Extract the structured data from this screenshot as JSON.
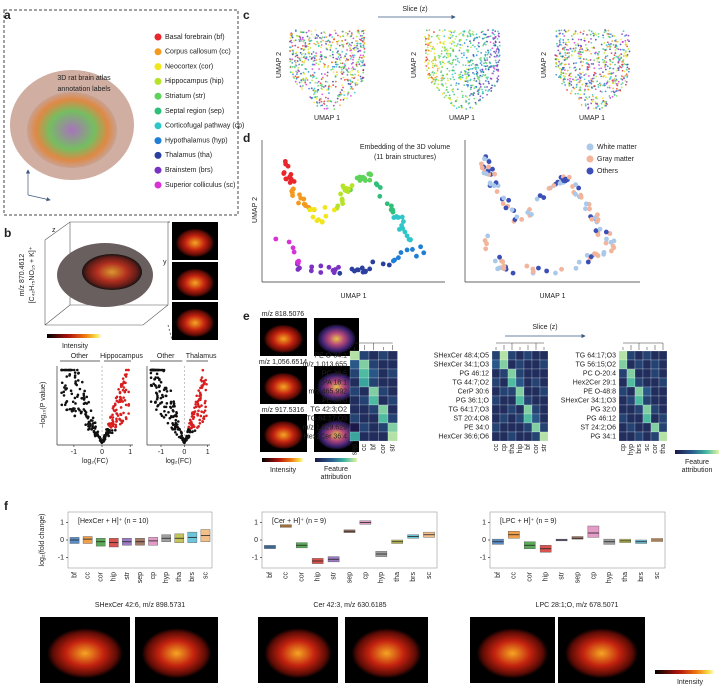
{
  "figure": {
    "a": {
      "label": "a",
      "title": [
        "3D rat brain atlas",
        "annotation labels"
      ],
      "legend": [
        {
          "name": "Basal forebrain (bf)",
          "color": "#e8262b"
        },
        {
          "name": "Corpus callosum (cc)",
          "color": "#f39a1e"
        },
        {
          "name": "Neocortex (cor)",
          "color": "#f1e51b"
        },
        {
          "name": "Hippocampus (hip)",
          "color": "#b7e326"
        },
        {
          "name": "Striatum (str)",
          "color": "#5ed35a"
        },
        {
          "name": "Septal region (sep)",
          "color": "#2fbf78"
        },
        {
          "name": "Corticofugal pathway (cp)",
          "color": "#2ec6c8"
        },
        {
          "name": "Hypothalamus (hyp)",
          "color": "#1f7fd6"
        },
        {
          "name": "Thalamus (tha)",
          "color": "#2b3f9e"
        },
        {
          "name": "Brainstem (brs)",
          "color": "#7b32c2"
        },
        {
          "name": "Superior colliculus (sc)",
          "color": "#d831d6"
        }
      ]
    },
    "b": {
      "label": "b",
      "mz": "m/z 870.4612",
      "ion": "[C₄₂H₇₅NO₁₅ + K]⁺",
      "axis_z": "z",
      "axis_y": "y",
      "colorbar": "Intensity",
      "volcano": [
        {
          "left": "Other",
          "right": "Hippocampus",
          "xlabel": "log₂(FC)",
          "ylabel": "−log₁₀(P value)",
          "xlim": [
            -1.6,
            1.1
          ],
          "xticks": [
            -1,
            0,
            1
          ]
        },
        {
          "left": "Other",
          "right": "Thalamus",
          "xlabel": "log₂(FC)",
          "xlim": [
            -1.6,
            1.1
          ],
          "xticks": [
            -1,
            0,
            1
          ]
        }
      ]
    },
    "c": {
      "label": "c",
      "slice": "Slice (z)",
      "plots": [
        {
          "xlabel": "UMAP 1",
          "ylabel": "UMAP 2"
        },
        {
          "xlabel": "UMAP 1",
          "ylabel": "UMAP 2"
        },
        {
          "xlabel": "UMAP 1",
          "ylabel": "UMAP 2"
        }
      ]
    },
    "d": {
      "label": "d",
      "note": [
        "Embedding of the 3D volume",
        "(11 brain structures)"
      ],
      "plots": [
        {
          "xlabel": "UMAP 1",
          "ylabel": "UMAP 2"
        },
        {
          "xlabel": "UMAP 1"
        }
      ],
      "legend": [
        {
          "name": "White matter",
          "color": "#a9c8ea"
        },
        {
          "name": "Gray matter",
          "color": "#f2b49a"
        },
        {
          "name": "Others",
          "color": "#3b4fb8"
        }
      ]
    },
    "e": {
      "label": "e",
      "images": [
        "m/z 818.5076",
        "m/z 1,056.6514",
        "m/z 917.5316"
      ],
      "intensity": "Intensity",
      "attribution": [
        "Feature",
        "attribution"
      ],
      "slice": "Slice (z)",
      "colorbar": [
        "Feature",
        "attribution"
      ],
      "heatmaps": [
        {
          "rows": [
            "PE O-34:1",
            "m/z 1,013.655",
            "PC 38:5",
            "LPA 18:1",
            "m/z 465.992",
            "PE 38:0",
            "TG 42:3;O2",
            "TG 64:17;O3",
            "m/z 1,029.629",
            "Hex2Cer 36:4"
          ],
          "cols": [
            "sep",
            "cc",
            "bf",
            "cor",
            "str"
          ],
          "values": [
            [
              0.9,
              0.2,
              0.1,
              0.2,
              0.1
            ],
            [
              0.3,
              0.8,
              0.2,
              0.1,
              0.1
            ],
            [
              0.2,
              0.7,
              0.3,
              0.1,
              0.2
            ],
            [
              0.1,
              0.6,
              0.2,
              0.1,
              0.1
            ],
            [
              0.2,
              0.1,
              0.8,
              0.2,
              0.1
            ],
            [
              0.1,
              0.2,
              0.7,
              0.1,
              0.2
            ],
            [
              0.1,
              0.1,
              0.2,
              0.8,
              0.1
            ],
            [
              0.2,
              0.1,
              0.1,
              0.7,
              0.2
            ],
            [
              0.0,
              0.2,
              0.1,
              0.2,
              0.8
            ],
            [
              0.6,
              0.1,
              0.1,
              0.1,
              0.9
            ]
          ]
        },
        {
          "rows": [
            "SHexCer 48:4;O5",
            "SHexCer 34:1;O3",
            "PG 46:12",
            "TG 44:7;O2",
            "CerP 30:6",
            "PG 36:1;O",
            "TG 64:17;O3",
            "ST 20:4;O8",
            "PE 34:0",
            "HexCer 36:6;O6"
          ],
          "cols": [
            "cc",
            "cp",
            "tha",
            "hip",
            "bf",
            "cor",
            "str"
          ],
          "values": [
            [
              0.2,
              0.9,
              0.2,
              0.1,
              0.2,
              0.1,
              0.1
            ],
            [
              0.3,
              0.8,
              0.1,
              0.2,
              0.1,
              0.1,
              0.2
            ],
            [
              0.1,
              0.2,
              0.8,
              0.2,
              0.1,
              0.1,
              0.1
            ],
            [
              0.2,
              0.1,
              0.7,
              0.3,
              0.1,
              0.2,
              0.1
            ],
            [
              0.1,
              0.2,
              0.2,
              0.8,
              0.1,
              0.1,
              0.2
            ],
            [
              0.2,
              0.1,
              0.1,
              0.7,
              0.2,
              0.1,
              0.1
            ],
            [
              0.1,
              0.1,
              0.2,
              0.1,
              0.8,
              0.2,
              0.1
            ],
            [
              0.1,
              0.2,
              0.1,
              0.2,
              0.7,
              0.3,
              0.1
            ],
            [
              0.2,
              0.1,
              0.1,
              0.1,
              0.2,
              0.8,
              0.2
            ],
            [
              0.1,
              0.1,
              0.2,
              0.1,
              0.1,
              0.2,
              0.9
            ]
          ]
        },
        {
          "rows": [
            "TG 64:17;O3",
            "TG 56:15;O2",
            "PC O-20:4",
            "Hex2Cer 29:1",
            "PE O-48:8",
            "SHexCer 34:1;O3",
            "PG 32:0",
            "PG 46:12",
            "ST 24:2;O6",
            "PG 34:1"
          ],
          "cols": [
            "cp",
            "hyp",
            "brs",
            "sc",
            "cor",
            "tha"
          ],
          "values": [
            [
              0.9,
              0.2,
              0.1,
              0.2,
              0.1,
              0.1
            ],
            [
              0.8,
              0.1,
              0.2,
              0.1,
              0.2,
              0.1
            ],
            [
              0.2,
              0.8,
              0.1,
              0.1,
              0.2,
              0.1
            ],
            [
              0.1,
              0.7,
              0.2,
              0.1,
              0.1,
              0.2
            ],
            [
              0.2,
              0.1,
              0.8,
              0.3,
              0.1,
              0.1
            ],
            [
              0.1,
              0.2,
              0.7,
              0.2,
              0.1,
              0.1
            ],
            [
              0.1,
              0.1,
              0.2,
              0.8,
              0.2,
              0.1
            ],
            [
              0.2,
              0.1,
              0.1,
              0.7,
              0.1,
              0.2
            ],
            [
              0.1,
              0.2,
              0.1,
              0.1,
              0.8,
              0.2
            ],
            [
              0.1,
              0.1,
              0.2,
              0.1,
              0.2,
              0.9
            ]
          ]
        }
      ]
    },
    "f": {
      "label": "f",
      "ylabel": "log₂(fold change)",
      "box_colors": [
        "#5b8fc9",
        "#f0a04b",
        "#5aaa5a",
        "#d9534f",
        "#9b7cc4",
        "#a57a6a",
        "#e39bc7",
        "#9e9e9e",
        "#c4c45a",
        "#6cc5d9",
        "#f3c08a"
      ],
      "charts": [
        {
          "type": "box",
          "title": "[HexCer + H]⁺ (n = 10)",
          "categories": [
            "bf",
            "cc",
            "cor",
            "hip",
            "str",
            "sep",
            "cp",
            "hyp",
            "tha",
            "brs",
            "sc"
          ],
          "q1": [
            -0.2,
            -0.2,
            -0.35,
            -0.4,
            -0.3,
            -0.3,
            -0.3,
            -0.1,
            -0.15,
            -0.15,
            -0.1
          ],
          "median": [
            0,
            0.05,
            -0.1,
            -0.15,
            -0.1,
            -0.1,
            -0.05,
            0.1,
            0.1,
            0.15,
            0.25
          ],
          "q3": [
            0.15,
            0.2,
            0.1,
            0.1,
            0.1,
            0.1,
            0.15,
            0.3,
            0.35,
            0.45,
            0.6
          ],
          "ylim": [
            -1.6,
            1.6
          ],
          "yticks": [
            -1,
            0,
            1
          ]
        },
        {
          "type": "box",
          "title": "[Cer + H]⁺ (n = 9)",
          "categories": [
            "bf",
            "cc",
            "cor",
            "hip",
            "str",
            "sep",
            "cp",
            "hyp",
            "tha",
            "brs",
            "sc"
          ],
          "q1": [
            -0.5,
            0.72,
            -0.45,
            -1.35,
            -1.25,
            0.42,
            0.9,
            -0.95,
            -0.2,
            0.1,
            0.15
          ],
          "median": [
            -0.4,
            0.8,
            -0.3,
            -1.2,
            -1.1,
            0.5,
            1.0,
            -0.8,
            -0.1,
            0.2,
            0.3
          ],
          "q3": [
            -0.3,
            0.88,
            -0.15,
            -1.05,
            -0.95,
            0.58,
            1.1,
            -0.65,
            0.0,
            0.3,
            0.45
          ],
          "ylim": [
            -1.6,
            1.6
          ],
          "yticks": [
            -1,
            0,
            1
          ]
        },
        {
          "type": "box",
          "title": "[LPC + H]⁺ (n = 9)",
          "categories": [
            "bf",
            "cc",
            "cor",
            "hip",
            "str",
            "sep",
            "cp",
            "hyp",
            "tha",
            "brs",
            "sc"
          ],
          "q1": [
            -0.25,
            0.1,
            -0.5,
            -0.7,
            -0.05,
            0.05,
            0.15,
            -0.25,
            -0.15,
            -0.2,
            -0.1
          ],
          "median": [
            -0.1,
            0.3,
            -0.3,
            -0.5,
            0.0,
            0.1,
            0.4,
            -0.1,
            -0.05,
            -0.1,
            0.0
          ],
          "q3": [
            0.05,
            0.5,
            -0.1,
            -0.3,
            0.05,
            0.2,
            0.8,
            0.05,
            0.05,
            0.0,
            0.1
          ],
          "ylim": [
            -1.6,
            1.6
          ],
          "yticks": [
            -1,
            0,
            1
          ]
        }
      ],
      "captions": [
        "SHexCer 42:6, m/z 898.5731",
        "Cer 42:3, m/z 630.6185",
        "LPC 28:1;O, m/z 678.5071"
      ],
      "intensity": "Intensity"
    }
  }
}
